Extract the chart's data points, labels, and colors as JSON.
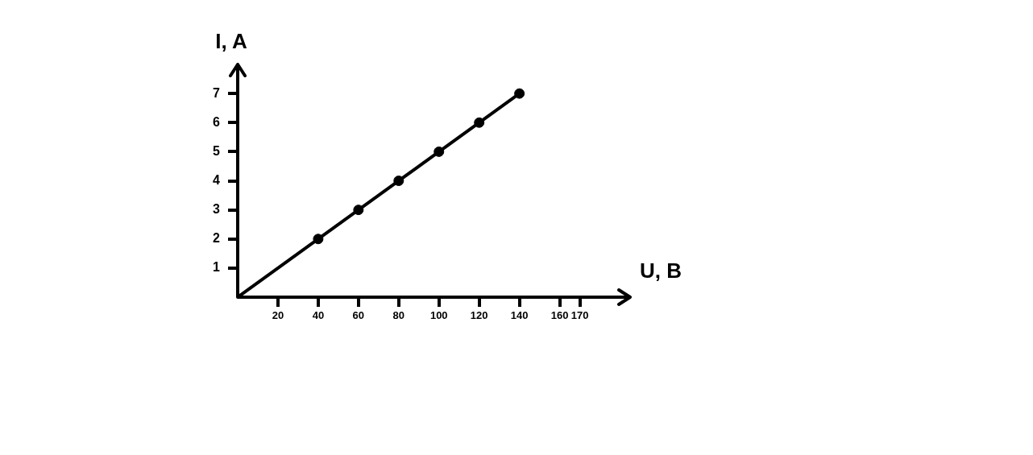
{
  "chart_data": {
    "type": "line",
    "xlabel": "U, B",
    "ylabel": "I, A",
    "xlim": [
      0,
      195
    ],
    "xticks": [
      20,
      40,
      60,
      80,
      100,
      120,
      140,
      160,
      170
    ],
    "ylim": [
      0,
      8
    ],
    "yticks": [
      1,
      2,
      3,
      4,
      5,
      6,
      7
    ],
    "grid": false,
    "legend": false,
    "series": [
      {
        "color": "#000000",
        "marker": "none",
        "x": [
          0,
          140
        ],
        "values": [
          0,
          7
        ]
      },
      {
        "type": "scatter",
        "color": "#000000",
        "marker": "circle",
        "x": [
          40,
          60,
          80,
          100,
          120,
          140
        ],
        "values": [
          2,
          3,
          4,
          5,
          6,
          7
        ]
      }
    ]
  }
}
